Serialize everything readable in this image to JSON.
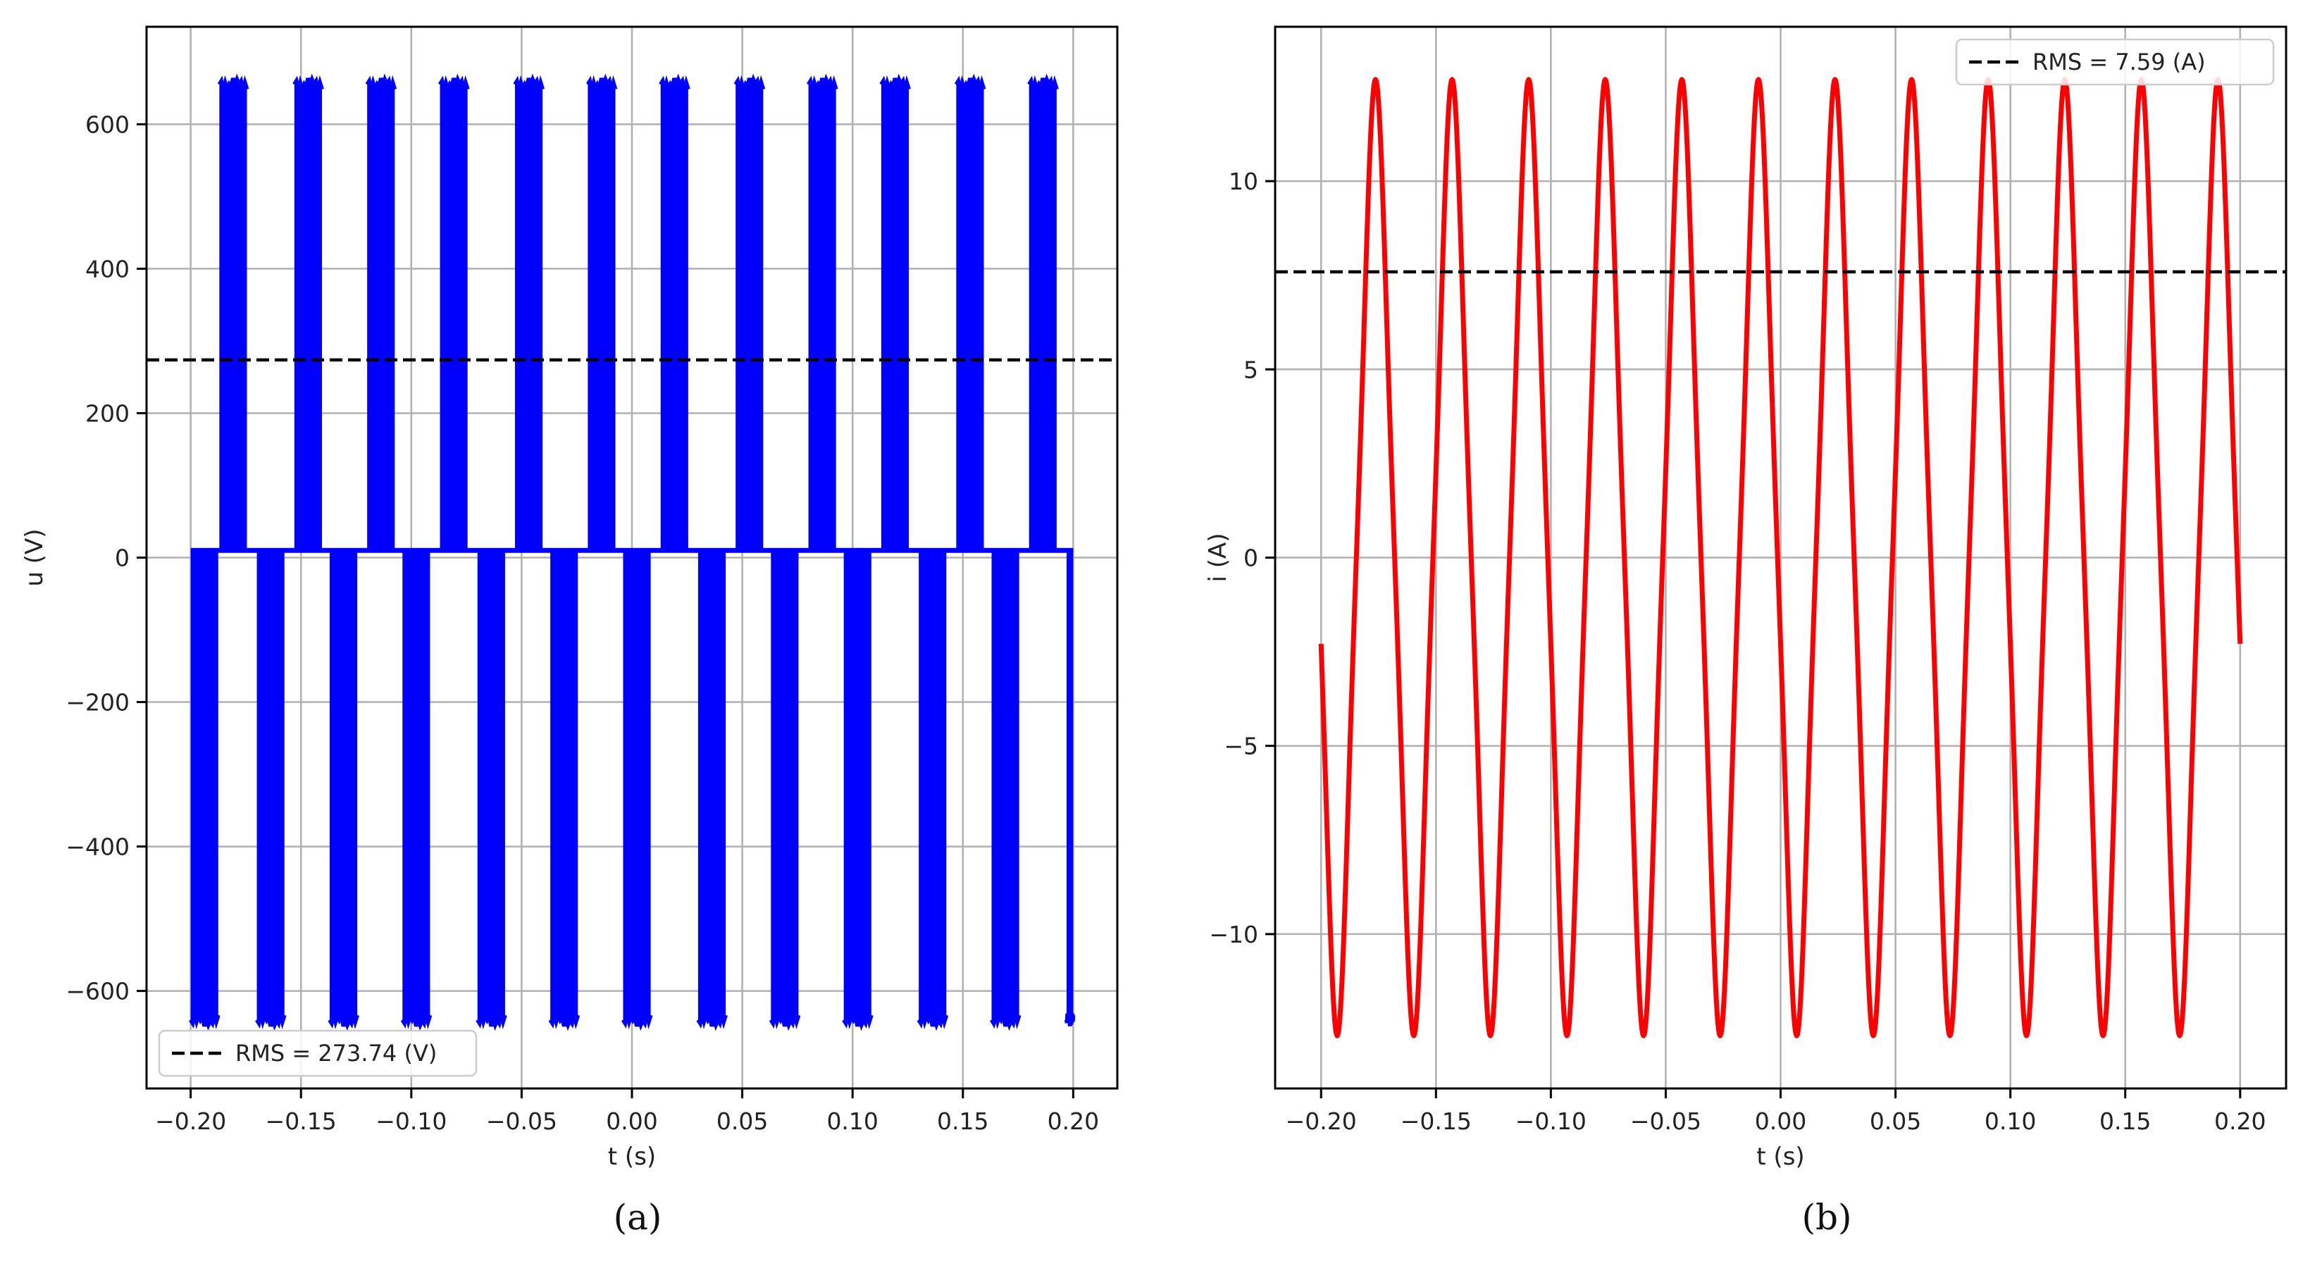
{
  "figure": {
    "captions": [
      "(a)",
      "(b)"
    ]
  },
  "chart_data": [
    {
      "type": "line",
      "panel_label": "(a)",
      "xlabel": "t (s)",
      "ylabel": "u (V)",
      "xlim": [
        -0.22,
        0.22
      ],
      "ylim": [
        -735,
        735
      ],
      "xticks": [
        -0.2,
        -0.15,
        -0.1,
        -0.05,
        0.0,
        0.05,
        0.1,
        0.15,
        0.2
      ],
      "xtick_labels": [
        "−0.20",
        "−0.15",
        "−0.10",
        "−0.05",
        "0.00",
        "0.05",
        "0.10",
        "0.15",
        "0.20"
      ],
      "yticks": [
        -600,
        -400,
        -200,
        0,
        200,
        400,
        600
      ],
      "ytick_labels": [
        "−600",
        "−400",
        "−200",
        "0",
        "200",
        "400",
        "600"
      ],
      "grid": true,
      "legend_position": "bottom-left",
      "series": [
        {
          "kind": "pulse-train",
          "color": "#0000ff",
          "x_range": [
            -0.2,
            0.2
          ],
          "period": 0.0333,
          "pulse_width": 0.0125,
          "positive_pulse_starts": [
            -0.187,
            -0.153,
            -0.12,
            -0.087,
            -0.053,
            -0.02,
            0.013,
            0.047,
            0.08,
            0.113,
            0.147,
            0.18
          ],
          "negative_pulse_starts": [
            -0.2,
            -0.17,
            -0.137,
            -0.104,
            -0.07,
            -0.037,
            -0.004,
            0.03,
            0.063,
            0.096,
            0.13,
            0.163,
            0.197
          ],
          "positive_peak": 655,
          "negative_peak": -640,
          "baseline": 10
        },
        {
          "kind": "hline",
          "name": "RMS = 273.74 (V)",
          "value": 273.74,
          "color": "#000000",
          "dashed": true
        }
      ]
    },
    {
      "type": "line",
      "panel_label": "(b)",
      "xlabel": "t (s)",
      "ylabel": "i (A)",
      "xlim": [
        -0.22,
        0.22
      ],
      "ylim": [
        -14.1,
        14.1
      ],
      "xticks": [
        -0.2,
        -0.15,
        -0.1,
        -0.05,
        0.0,
        0.05,
        0.1,
        0.15,
        0.2
      ],
      "xtick_labels": [
        "−0.20",
        "−0.15",
        "−0.10",
        "−0.05",
        "0.00",
        "0.05",
        "0.10",
        "0.15",
        "0.20"
      ],
      "yticks": [
        -10,
        -5,
        0,
        5,
        10
      ],
      "ytick_labels": [
        "−10",
        "−5",
        "0",
        "5",
        "10"
      ],
      "grid": true,
      "legend_position": "top-right",
      "series": [
        {
          "kind": "sine",
          "color": "#ff0000",
          "x_range": [
            -0.2,
            0.2
          ],
          "amplitude": 11.8,
          "frequency_hz": 30,
          "phase_rad": 3.39,
          "harmonic3_amplitude": -0.9
        },
        {
          "kind": "hline",
          "name": "RMS = 7.59 (A)",
          "value": 7.59,
          "color": "#000000",
          "dashed": true
        }
      ]
    }
  ]
}
